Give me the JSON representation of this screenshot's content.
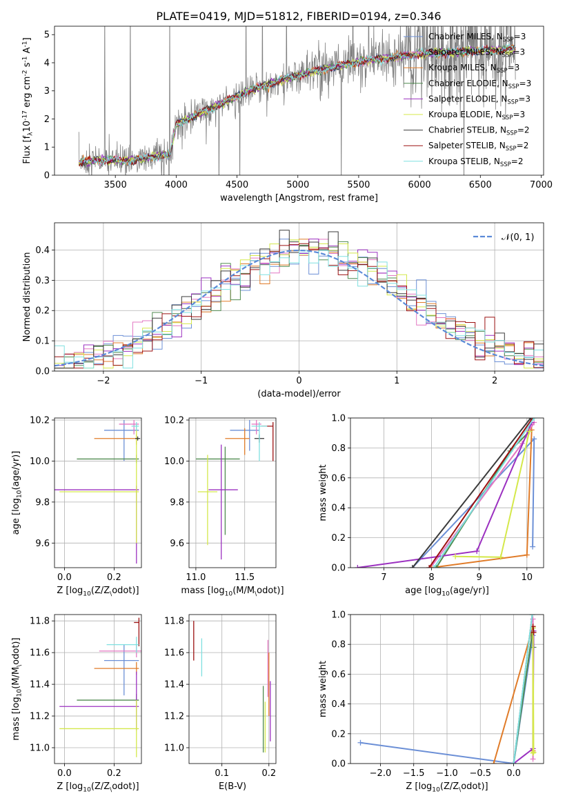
{
  "figure": {
    "title": "PLATE=0419, MJD=51812, FIBERID=0194, z=0.346"
  },
  "colors": {
    "chabrier_miles": "#6b8fd6",
    "salpeter_miles": "#e377c2",
    "kroupa_miles": "#e07b28",
    "chabrier_elodie": "#4f8a4f",
    "salpeter_elodie": "#9b30c0",
    "kroupa_elodie": "#d4e84a",
    "chabrier_stelib": "#3b3b3b",
    "salpeter_stelib": "#9b1010",
    "kroupa_stelib": "#7fe0e0",
    "data": "#808080",
    "gaussian": "#5b8ad8"
  },
  "chart_data": [
    {
      "id": "spectrum",
      "type": "line",
      "xlabel": "wavelength [Angstrom, rest frame]",
      "ylabel": "Flux [f$_λ$10$^{-17}$ erg cm$^{-2}$ s$^{-1}$ A$^{-1}$]",
      "xlim": [
        3000,
        7020
      ],
      "ylim": [
        0,
        5.3
      ],
      "xticks": [
        "3500",
        "4000",
        "4500",
        "5000",
        "5500",
        "6000",
        "6500",
        "7000"
      ],
      "yticks": [
        "0",
        "1",
        "2",
        "3",
        "4",
        "5"
      ],
      "legend_position": "top-right",
      "legend": [
        {
          "name": "Chabrier MILES, N",
          "sub": "SSP",
          "suffix": "=3",
          "color_key": "chabrier_miles"
        },
        {
          "name": "Salpeter MILES, N",
          "sub": "SSP",
          "suffix": "=3",
          "color_key": "salpeter_miles"
        },
        {
          "name": "Kroupa MILES, N",
          "sub": "SSP",
          "suffix": "=3",
          "color_key": "kroupa_miles"
        },
        {
          "name": "Chabrier ELODIE, N",
          "sub": "SSP",
          "suffix": "=3",
          "color_key": "chabrier_elodie"
        },
        {
          "name": "Salpeter ELODIE, N",
          "sub": "SSP",
          "suffix": "=3",
          "color_key": "salpeter_elodie"
        },
        {
          "name": "Kroupa ELODIE, N",
          "sub": "SSP",
          "suffix": "=3",
          "color_key": "kroupa_elodie"
        },
        {
          "name": "Chabrier STELIB, N",
          "sub": "SSP",
          "suffix": "=2",
          "color_key": "chabrier_stelib"
        },
        {
          "name": "Salpeter STELIB, N",
          "sub": "SSP",
          "suffix": "=2",
          "color_key": "salpeter_stelib"
        },
        {
          "name": "Kroupa STELIB, N",
          "sub": "SSP",
          "suffix": "=2",
          "color_key": "kroupa_stelib"
        }
      ],
      "continuum": [
        [
          3200,
          0.45
        ],
        [
          3400,
          0.55
        ],
        [
          3600,
          0.5
        ],
        [
          3800,
          0.65
        ],
        [
          3950,
          0.75
        ],
        [
          4000,
          1.8
        ],
        [
          4200,
          2.2
        ],
        [
          4400,
          2.6
        ],
        [
          4600,
          3.0
        ],
        [
          4800,
          3.3
        ],
        [
          5000,
          3.55
        ],
        [
          5200,
          3.75
        ],
        [
          5400,
          3.95
        ],
        [
          5600,
          4.1
        ],
        [
          5800,
          4.2
        ],
        [
          6000,
          4.3
        ],
        [
          6300,
          4.4
        ],
        [
          6600,
          4.45
        ],
        [
          6800,
          4.5
        ]
      ],
      "data_range": [
        3200,
        6790
      ],
      "data_noise_tail_start": 5900
    },
    {
      "id": "residuals",
      "type": "histogram",
      "xlabel": "(data-model)/error",
      "ylabel": "Normed distribution",
      "xlim": [
        -2.5,
        2.5
      ],
      "ylim": [
        0,
        0.49
      ],
      "xticks": [
        "−2",
        "−1",
        "0",
        "1",
        "2"
      ],
      "yticks": [
        "0.0",
        "0.1",
        "0.2",
        "0.3",
        "0.4"
      ],
      "legend": [
        "$\\mathcal{N}(0,1)$"
      ],
      "legend_position": "top-right",
      "bin_width": 0.1
    },
    {
      "id": "age_vs_Z",
      "type": "scatter",
      "xlabel": "Z [log$_{10}$($Z/Z_\\odot$)]",
      "ylabel": "age  [log$_{10}$($age/yr$)]",
      "xlim": [
        -0.04,
        0.31
      ],
      "ylim": [
        9.48,
        10.21
      ],
      "xticks": [
        "0.0",
        "0.2"
      ],
      "yticks": [
        "9.6",
        "9.8",
        "10.0",
        "10.2"
      ],
      "series": [
        {
          "color_key": "chabrier_miles",
          "x": 0.24,
          "y": 10.15,
          "xerr": [
            0.08,
            0.06
          ],
          "yerr": [
            0.15,
            0.05
          ]
        },
        {
          "color_key": "salpeter_miles",
          "x": 0.28,
          "y": 10.18,
          "xerr": [
            0.06,
            0.02
          ],
          "yerr": [
            0.05,
            0.02
          ]
        },
        {
          "color_key": "kroupa_miles",
          "x": 0.29,
          "y": 10.11,
          "xerr": [
            0.17,
            0.01
          ],
          "yerr": [
            0.03,
            0.02
          ]
        },
        {
          "color_key": "chabrier_elodie",
          "x": 0.29,
          "y": 10.01,
          "xerr": [
            0.24,
            0.01
          ],
          "yerr": [
            0.02,
            0.02
          ]
        },
        {
          "color_key": "salpeter_elodie",
          "x": 0.29,
          "y": 9.86,
          "xerr": [
            0.33,
            0.01
          ],
          "yerr": [
            0.36,
            0.02
          ]
        },
        {
          "color_key": "kroupa_elodie",
          "x": 0.29,
          "y": 9.85,
          "xerr": [
            0.31,
            0.01
          ],
          "yerr": [
            0.25,
            0.33
          ]
        },
        {
          "color_key": "chabrier_stelib",
          "x": 0.295,
          "y": 10.11,
          "xerr": [
            0.01,
            0.01
          ],
          "yerr": [
            0.01,
            0.01
          ]
        },
        {
          "color_key": "kroupa_stelib",
          "x": 0.29,
          "y": 10.17,
          "xerr": [
            0.02,
            0.01
          ],
          "yerr": [
            0.02,
            0.02
          ]
        }
      ]
    },
    {
      "id": "age_vs_mass",
      "type": "scatter",
      "xlabel": "mass [log$_{10}$($M/M_\\odot$)]",
      "ylabel": "",
      "xlim": [
        10.93,
        11.82
      ],
      "ylim": [
        9.48,
        10.21
      ],
      "xticks": [
        "11.0",
        "11.5"
      ],
      "yticks": [
        "9.6",
        "9.8",
        "10.0",
        "10.2"
      ],
      "series": [
        {
          "color_key": "chabrier_miles",
          "x": 11.55,
          "y": 10.15,
          "xerr": [
            0.2,
            0.1
          ],
          "yerr": [
            0.1,
            0.05
          ]
        },
        {
          "color_key": "salpeter_miles",
          "x": 11.62,
          "y": 10.18,
          "xerr": [
            0.05,
            0.05
          ],
          "yerr": [
            0.05,
            0.02
          ]
        },
        {
          "color_key": "kroupa_miles",
          "x": 11.5,
          "y": 10.11,
          "xerr": [
            0.2,
            0.05
          ],
          "yerr": [
            0.08,
            0.05
          ]
        },
        {
          "color_key": "chabrier_elodie",
          "x": 11.3,
          "y": 10.01,
          "xerr": [
            0.3,
            0.15
          ],
          "yerr": [
            0.37,
            0.06
          ]
        },
        {
          "color_key": "salpeter_elodie",
          "x": 11.26,
          "y": 9.86,
          "xerr": [
            0.13,
            0.17
          ],
          "yerr": [
            0.34,
            0.22
          ]
        },
        {
          "color_key": "kroupa_elodie",
          "x": 11.12,
          "y": 9.85,
          "xerr": [
            0.1,
            0.1
          ],
          "yerr": [
            0.26,
            0.18
          ]
        },
        {
          "color_key": "chabrier_stelib",
          "x": 11.65,
          "y": 10.11,
          "xerr": [
            0.05,
            0.05
          ],
          "yerr": [
            0.02,
            0.02
          ]
        },
        {
          "color_key": "salpeter_stelib",
          "x": 11.79,
          "y": 10.17,
          "xerr": [
            0.12,
            0.0
          ],
          "yerr": [
            0.17,
            0.02
          ]
        },
        {
          "color_key": "kroupa_stelib",
          "x": 11.65,
          "y": 10.17,
          "xerr": [
            0.08,
            0.08
          ],
          "yerr": [
            0.17,
            0.02
          ]
        }
      ]
    },
    {
      "id": "massweight_vs_age",
      "type": "line",
      "xlabel": "age  [log$_{10}$($age/yr$)]",
      "ylabel": "mass weight",
      "xlim": [
        6.3,
        10.35
      ],
      "ylim": [
        0,
        1.0
      ],
      "xticks": [
        "7",
        "8",
        "9",
        "10"
      ],
      "yticks": [
        "0.0",
        "0.2",
        "0.4",
        "0.6",
        "0.8",
        "1.0"
      ],
      "series": [
        {
          "color_key": "chabrier_miles",
          "x": [
            7.6,
            10.15,
            10.12
          ],
          "y": [
            0.0,
            0.86,
            0.14
          ]
        },
        {
          "color_key": "salpeter_miles",
          "x": [
            7.98,
            9.9,
            10.15
          ],
          "y": [
            0.0,
            0.83,
            0.97
          ]
        },
        {
          "color_key": "kroupa_miles",
          "x": [
            8.0,
            10.0,
            10.1
          ],
          "y": [
            0.0,
            0.085,
            0.92
          ]
        },
        {
          "color_key": "chabrier_elodie",
          "x": [
            8.1,
            9.65,
            10.05
          ],
          "y": [
            0.0,
            0.78,
            0.91
          ]
        },
        {
          "color_key": "salpeter_elodie",
          "x": [
            6.45,
            8.95,
            10.1
          ],
          "y": [
            0.0,
            0.11,
            0.97
          ]
        },
        {
          "color_key": "kroupa_elodie",
          "x": [
            8.5,
            9.45,
            10.05
          ],
          "y": [
            0.075,
            0.07,
            0.91
          ]
        },
        {
          "color_key": "chabrier_stelib",
          "x": [
            7.6,
            10.08
          ],
          "y": [
            0.0,
            1.0
          ]
        },
        {
          "color_key": "salpeter_stelib",
          "x": [
            7.95,
            10.12
          ],
          "y": [
            0.0,
            1.0
          ]
        },
        {
          "color_key": "kroupa_stelib",
          "x": [
            8.05,
            10.15
          ],
          "y": [
            0.0,
            1.0
          ]
        }
      ]
    },
    {
      "id": "mass_vs_Z",
      "type": "scatter",
      "xlabel": "Z [log$_{10}$($Z/Z_\\odot$)]",
      "ylabel": "mass [log$_{10}$($M/M_\\odot$)]",
      "xlim": [
        -0.04,
        0.31
      ],
      "ylim": [
        10.9,
        11.84
      ],
      "xticks": [
        "0.0",
        "0.2"
      ],
      "yticks": [
        "11.0",
        "11.2",
        "11.4",
        "11.6",
        "11.8"
      ],
      "series": [
        {
          "color_key": "chabrier_miles",
          "x": 0.24,
          "y": 11.55,
          "xerr": [
            0.08,
            0.06
          ],
          "yerr": [
            0.22,
            0.1
          ]
        },
        {
          "color_key": "salpeter_miles",
          "x": 0.29,
          "y": 11.61,
          "xerr": [
            0.15,
            0.02
          ],
          "yerr": [
            0.04,
            0.04
          ]
        },
        {
          "color_key": "kroupa_miles",
          "x": 0.29,
          "y": 11.5,
          "xerr": [
            0.17,
            0.01
          ],
          "yerr": [
            0.04,
            0.04
          ]
        },
        {
          "color_key": "chabrier_elodie",
          "x": 0.29,
          "y": 11.3,
          "xerr": [
            0.24,
            0.01
          ],
          "yerr": [
            0.04,
            0.04
          ]
        },
        {
          "color_key": "salpeter_elodie",
          "x": 0.29,
          "y": 11.26,
          "xerr": [
            0.31,
            0.01
          ],
          "yerr": [
            0.15,
            0.22
          ]
        },
        {
          "color_key": "kroupa_elodie",
          "x": 0.29,
          "y": 11.12,
          "xerr": [
            0.31,
            0.01
          ],
          "yerr": [
            0.18,
            0.18
          ]
        },
        {
          "color_key": "salpeter_stelib",
          "x": 0.3,
          "y": 11.79,
          "xerr": [
            0.02,
            0.0
          ],
          "yerr": [
            0.15,
            0.03
          ]
        },
        {
          "color_key": "kroupa_stelib",
          "x": 0.29,
          "y": 11.65,
          "xerr": [
            0.12,
            0.01
          ],
          "yerr": [
            0.05,
            0.05
          ]
        }
      ]
    },
    {
      "id": "mass_vs_ebv",
      "type": "scatter",
      "xlabel": "E(B-V)",
      "ylabel": "",
      "xlim": [
        0.03,
        0.215
      ],
      "ylim": [
        10.9,
        11.84
      ],
      "xticks": [
        "0.1",
        "0.2"
      ],
      "yticks": [
        "11.0",
        "11.2",
        "11.4",
        "11.6",
        "11.8"
      ],
      "series": [
        {
          "color_key": "salpeter_stelib",
          "x": 0.04,
          "y": 11.68,
          "xerr": [
            0,
            0
          ],
          "yerr": [
            0.13,
            0.12
          ]
        },
        {
          "color_key": "kroupa_stelib",
          "x": 0.057,
          "y": 11.57,
          "xerr": [
            0,
            0
          ],
          "yerr": [
            0.12,
            0.12
          ]
        },
        {
          "color_key": "chabrier_elodie",
          "x": 0.188,
          "y": 11.18,
          "xerr": [
            0,
            0
          ],
          "yerr": [
            0.21,
            0.21
          ]
        },
        {
          "color_key": "kroupa_elodie",
          "x": 0.192,
          "y": 11.15,
          "xerr": [
            0,
            0
          ],
          "yerr": [
            0.18,
            0.14
          ]
        },
        {
          "color_key": "salpeter_miles",
          "x": 0.198,
          "y": 11.5,
          "xerr": [
            0,
            0
          ],
          "yerr": [
            0.18,
            0.18
          ]
        },
        {
          "color_key": "kroupa_miles",
          "x": 0.2,
          "y": 11.4,
          "xerr": [
            0,
            0
          ],
          "yerr": [
            0.2,
            0.2
          ]
        },
        {
          "color_key": "salpeter_elodie",
          "x": 0.203,
          "y": 11.22,
          "xerr": [
            0,
            0
          ],
          "yerr": [
            0.18,
            0.2
          ]
        }
      ]
    },
    {
      "id": "massweight_vs_Z",
      "type": "line",
      "xlabel": "Z [log$_{10}$($Z/Z_\\odot$)]",
      "ylabel": "mass weight",
      "xlim": [
        -2.45,
        0.45
      ],
      "ylim": [
        0,
        1.0
      ],
      "xticks": [
        "−2.0",
        "−1.5",
        "−1.0",
        "−0.5",
        "0.0"
      ],
      "yticks": [
        "0.0",
        "0.2",
        "0.4",
        "0.6",
        "0.8",
        "1.0"
      ],
      "series": [
        {
          "color_key": "chabrier_miles",
          "x": [
            -2.3,
            0.0,
            0.29
          ],
          "y": [
            0.14,
            0.0,
            0.86
          ]
        },
        {
          "color_key": "salpeter_miles",
          "x": [
            0.29,
            0.29
          ],
          "y": [
            0.03,
            0.97
          ]
        },
        {
          "color_key": "kroupa_miles",
          "x": [
            -0.3,
            0.29,
            0.29
          ],
          "y": [
            0.0,
            0.92,
            0.085
          ]
        },
        {
          "color_key": "chabrier_elodie",
          "x": [
            0.0,
            0.29,
            0.3
          ],
          "y": [
            0.0,
            0.91,
            0.78
          ]
        },
        {
          "color_key": "salpeter_elodie",
          "x": [
            0.0,
            0.29,
            0.3
          ],
          "y": [
            0.0,
            0.1,
            0.89
          ]
        },
        {
          "color_key": "kroupa_elodie",
          "x": [
            0.29,
            0.29,
            0.3
          ],
          "y": [
            0.07,
            0.91,
            0.075
          ]
        },
        {
          "color_key": "chabrier_stelib",
          "x": [
            0.0,
            0.28
          ],
          "y": [
            0.0,
            1.0
          ]
        },
        {
          "color_key": "salpeter_stelib",
          "x": [
            0.29,
            0.3
          ],
          "y": [
            0.92,
            0.88
          ]
        },
        {
          "color_key": "kroupa_stelib",
          "x": [
            0.0,
            0.28
          ],
          "y": [
            0.0,
            1.0
          ]
        }
      ]
    }
  ]
}
